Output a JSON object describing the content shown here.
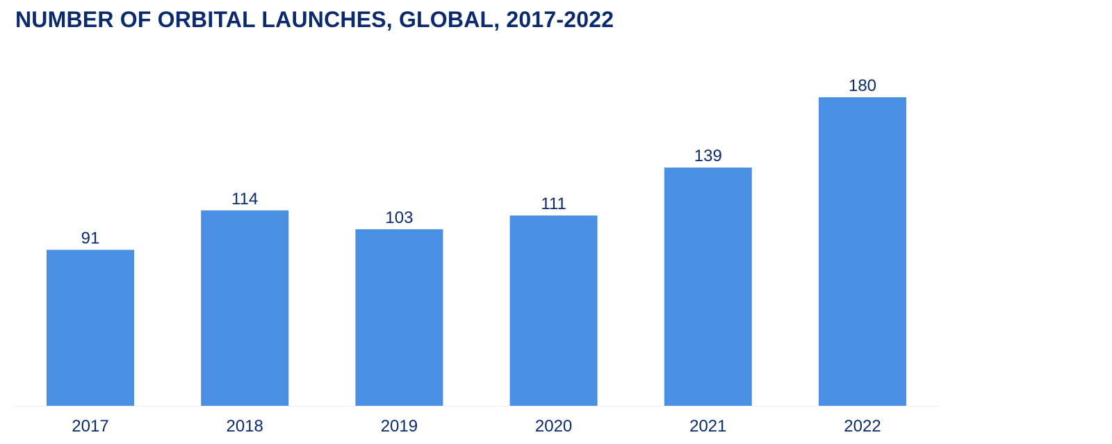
{
  "colors": {
    "title": "#0b2a6e",
    "bar": "#4a90e2",
    "text": "#0b2a6e",
    "baseline": "#ececec"
  },
  "chart_data": {
    "type": "bar",
    "title": "NUMBER OF ORBITAL LAUNCHES, GLOBAL, 2017-2022",
    "xlabel": "",
    "ylabel": "",
    "categories": [
      "2017",
      "2018",
      "2019",
      "2020",
      "2021",
      "2022"
    ],
    "values": [
      91,
      114,
      103,
      111,
      139,
      180
    ],
    "ylim": [
      0,
      180
    ],
    "grid": false,
    "data_labels": true
  }
}
